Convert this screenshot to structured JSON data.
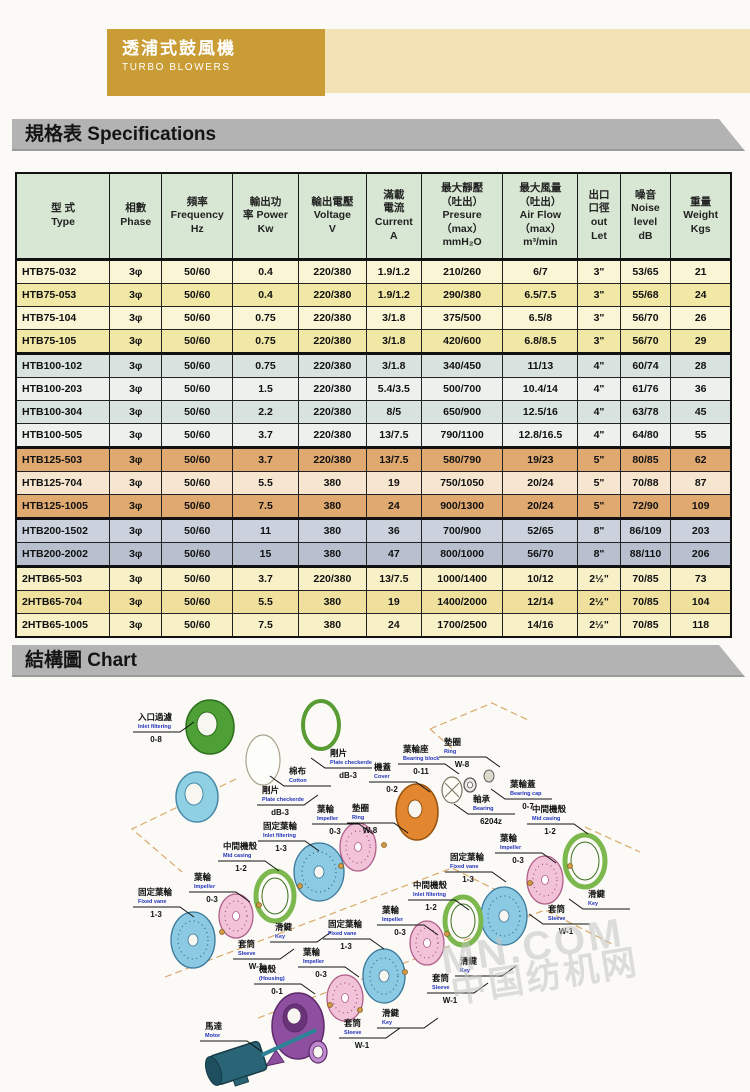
{
  "header": {
    "brand_zh": "透浦式鼓風機",
    "brand_en": "TURBO  BLOWERS"
  },
  "sections": {
    "specs_title": "規格表 Specifications",
    "chart_title": "結構圖 Chart"
  },
  "table": {
    "columns": [
      {
        "lines": [
          "型 式",
          "Type"
        ]
      },
      {
        "lines": [
          "相數",
          "Phase"
        ]
      },
      {
        "lines": [
          "頻率",
          "Frequency",
          "Hz"
        ]
      },
      {
        "lines": [
          "輸出功",
          "率 Power",
          "Kw"
        ]
      },
      {
        "lines": [
          "輸出電壓",
          "Voltage",
          "V"
        ]
      },
      {
        "lines": [
          "滿載",
          "電流",
          "Current",
          "A"
        ]
      },
      {
        "lines": [
          "最大靜壓",
          "（吐出）",
          "Presure",
          "（max）",
          "mmH₂O"
        ]
      },
      {
        "lines": [
          "最大風量",
          "（吐出）",
          "Air Flow",
          "（max）",
          "m³/min"
        ]
      },
      {
        "lines": [
          "出口",
          "口徑",
          "out",
          "Let"
        ]
      },
      {
        "lines": [
          "噪音",
          "Noise",
          "level",
          "dB"
        ]
      },
      {
        "lines": [
          "重量",
          "Weight",
          "Kgs"
        ]
      }
    ],
    "rows": [
      {
        "tone": "y1",
        "sep": true,
        "cells": [
          "HTB75-032",
          "3φ",
          "50/60",
          "0.4",
          "220/380",
          "1.9/1.2",
          "210/260",
          "6/7",
          "3\"",
          "53/65",
          "21"
        ]
      },
      {
        "tone": "y2",
        "sep": false,
        "cells": [
          "HTB75-053",
          "3φ",
          "50/60",
          "0.4",
          "220/380",
          "1.9/1.2",
          "290/380",
          "6.5/7.5",
          "3\"",
          "55/68",
          "24"
        ]
      },
      {
        "tone": "y1",
        "sep": false,
        "cells": [
          "HTB75-104",
          "3φ",
          "50/60",
          "0.75",
          "220/380",
          "3/1.8",
          "375/500",
          "6.5/8",
          "3\"",
          "56/70",
          "26"
        ]
      },
      {
        "tone": "y2",
        "sep": false,
        "cells": [
          "HTB75-105",
          "3φ",
          "50/60",
          "0.75",
          "220/380",
          "3/1.8",
          "420/600",
          "6.8/8.5",
          "3\"",
          "56/70",
          "29"
        ]
      },
      {
        "tone": "g1",
        "sep": true,
        "cells": [
          "HTB100-102",
          "3φ",
          "50/60",
          "0.75",
          "220/380",
          "3/1.8",
          "340/450",
          "11/13",
          "4\"",
          "60/74",
          "28"
        ]
      },
      {
        "tone": "g2",
        "sep": false,
        "cells": [
          "HTB100-203",
          "3φ",
          "50/60",
          "1.5",
          "220/380",
          "5.4/3.5",
          "500/700",
          "10.4/14",
          "4\"",
          "61/76",
          "36"
        ]
      },
      {
        "tone": "g1",
        "sep": false,
        "cells": [
          "HTB100-304",
          "3φ",
          "50/60",
          "2.2",
          "220/380",
          "8/5",
          "650/900",
          "12.5/16",
          "4\"",
          "63/78",
          "45"
        ]
      },
      {
        "tone": "g2",
        "sep": false,
        "cells": [
          "HTB100-505",
          "3φ",
          "50/60",
          "3.7",
          "220/380",
          "13/7.5",
          "790/1100",
          "12.8/16.5",
          "4\"",
          "64/80",
          "55"
        ]
      },
      {
        "tone": "o1",
        "sep": true,
        "cells": [
          "HTB125-503",
          "3φ",
          "50/60",
          "3.7",
          "220/380",
          "13/7.5",
          "580/790",
          "19/23",
          "5\"",
          "80/85",
          "62"
        ]
      },
      {
        "tone": "o2",
        "sep": false,
        "cells": [
          "HTB125-704",
          "3φ",
          "50/60",
          "5.5",
          "380",
          "19",
          "750/1050",
          "20/24",
          "5\"",
          "70/88",
          "87"
        ]
      },
      {
        "tone": "o1",
        "sep": false,
        "cells": [
          "HTB125-1005",
          "3φ",
          "50/60",
          "7.5",
          "380",
          "24",
          "900/1300",
          "20/24",
          "5\"",
          "72/90",
          "109"
        ]
      },
      {
        "tone": "b1",
        "sep": true,
        "cells": [
          "HTB200-1502",
          "3φ",
          "50/60",
          "11",
          "380",
          "36",
          "700/900",
          "52/65",
          "8\"",
          "86/109",
          "203"
        ]
      },
      {
        "tone": "b2",
        "sep": false,
        "cells": [
          "HTB200-2002",
          "3φ",
          "50/60",
          "15",
          "380",
          "47",
          "800/1000",
          "56/70",
          "8\"",
          "88/110",
          "206"
        ]
      },
      {
        "tone": "c1",
        "sep": true,
        "cells": [
          "2HTB65-503",
          "3φ",
          "50/60",
          "3.7",
          "220/380",
          "13/7.5",
          "1000/1400",
          "10/12",
          "2½\"",
          "70/85",
          "73"
        ]
      },
      {
        "tone": "c2",
        "sep": false,
        "cells": [
          "2HTB65-704",
          "3φ",
          "50/60",
          "5.5",
          "380",
          "19",
          "1400/2000",
          "12/14",
          "2½\"",
          "70/85",
          "104"
        ]
      },
      {
        "tone": "c1",
        "sep": false,
        "cells": [
          "2HTB65-1005",
          "3φ",
          "50/60",
          "7.5",
          "380",
          "24",
          "1700/2500",
          "14/16",
          "2½\"",
          "70/85",
          "118"
        ]
      }
    ]
  },
  "diagram": {
    "labels": [
      {
        "zh": "入口過濾",
        "en": "Inlet filtering",
        "num": "0-8"
      },
      {
        "zh": "棉布",
        "en": "Cotton",
        "num": ""
      },
      {
        "zh": "剛片",
        "en": "Plate checkerde",
        "num": "dB-3"
      },
      {
        "zh": "剛片",
        "en": "Plate checkerde",
        "num": "dB-3"
      },
      {
        "zh": "機蓋",
        "en": "Cover",
        "num": "0-2"
      },
      {
        "zh": "葉輪座",
        "en": "Bearing block",
        "num": "0-11"
      },
      {
        "zh": "墊圈",
        "en": "Ring",
        "num": "W-8"
      },
      {
        "zh": "葉輪蓋",
        "en": "Bearing cap",
        "num": "0-7"
      },
      {
        "zh": "軸承",
        "en": "Bearing",
        "num": "6204z"
      },
      {
        "zh": "墊圈",
        "en": "Ring",
        "num": "W-8"
      },
      {
        "zh": "葉輪",
        "en": "Impeller",
        "num": "0-3"
      },
      {
        "zh": "固定葉輪",
        "en": "Inlet filtering",
        "num": "1-3"
      },
      {
        "zh": "中間機殼",
        "en": "Mid casing",
        "num": "1-2"
      },
      {
        "zh": "葉輪",
        "en": "Impeller",
        "num": "0-3"
      },
      {
        "zh": "固定葉輪",
        "en": "Fixed vane",
        "num": "1-3"
      },
      {
        "zh": "滑鍵",
        "en": "Key",
        "num": ""
      },
      {
        "zh": "套筒",
        "en": "Sleeve",
        "num": "W-1"
      },
      {
        "zh": "機殼",
        "en": "(Housing)",
        "num": "0-1"
      },
      {
        "zh": "馬達",
        "en": "Motor",
        "num": ""
      },
      {
        "zh": "葉輪",
        "en": "Impeller",
        "num": "0-3"
      },
      {
        "zh": "套筒",
        "en": "Sleeve",
        "num": "W-1"
      },
      {
        "zh": "滑鍵",
        "en": "Key",
        "num": ""
      },
      {
        "zh": "固定葉輪",
        "en": "Fixed vane",
        "num": "1-3"
      },
      {
        "zh": "葉輪",
        "en": "Impeller",
        "num": "0-3"
      },
      {
        "zh": "中間機殼",
        "en": "Inlet filtering",
        "num": "1-2"
      },
      {
        "zh": "套筒",
        "en": "Sleeve",
        "num": "W-1"
      },
      {
        "zh": "滑鍵",
        "en": "Key",
        "num": ""
      },
      {
        "zh": "固定葉輪",
        "en": "Fixed vane",
        "num": "1-3"
      },
      {
        "zh": "葉輪",
        "en": "Impeller",
        "num": "0-3"
      },
      {
        "zh": "中間機殼",
        "en": "Mid casing",
        "num": "1-2"
      },
      {
        "zh": "滑鍵",
        "en": "Key",
        "num": ""
      },
      {
        "zh": "套筒",
        "en": "Sleeve",
        "num": "W-1"
      }
    ],
    "watermark": {
      "line1": "MN.COM",
      "line2": "中国纺机网"
    }
  }
}
